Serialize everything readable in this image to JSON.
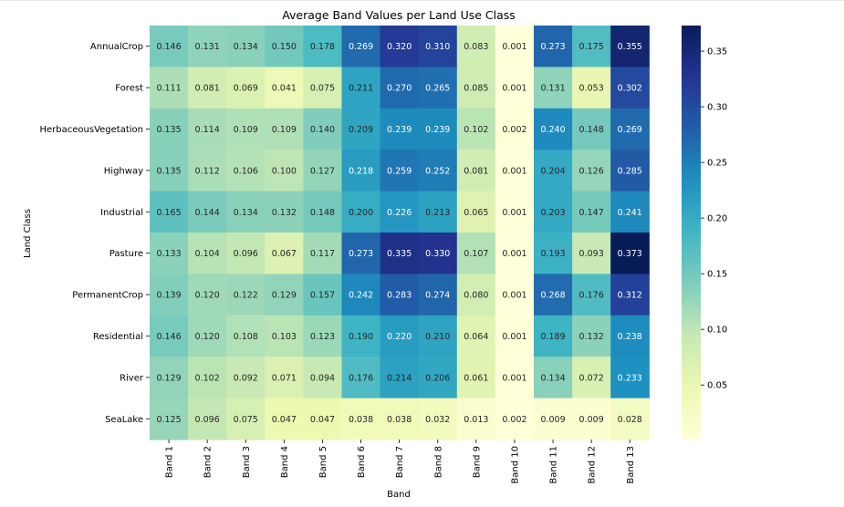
{
  "chart_data": {
    "type": "heatmap",
    "title": "Average Band Values per Land Use Class",
    "xlabel": "Band",
    "ylabel": "Land Class",
    "x": [
      "Band 1",
      "Band 2",
      "Band 3",
      "Band 4",
      "Band 5",
      "Band 6",
      "Band 7",
      "Band 8",
      "Band 9",
      "Band 10",
      "Band 11",
      "Band 12",
      "Band 13"
    ],
    "y": [
      "AnnualCrop",
      "Forest",
      "HerbaceousVegetation",
      "Highway",
      "Industrial",
      "Pasture",
      "PermanentCrop",
      "Residential",
      "River",
      "SeaLake"
    ],
    "values": [
      [
        0.146,
        0.131,
        0.134,
        0.15,
        0.178,
        0.269,
        0.32,
        0.31,
        0.083,
        0.001,
        0.273,
        0.175,
        0.355
      ],
      [
        0.111,
        0.081,
        0.069,
        0.041,
        0.075,
        0.211,
        0.27,
        0.265,
        0.085,
        0.001,
        0.131,
        0.053,
        0.302
      ],
      [
        0.135,
        0.114,
        0.109,
        0.109,
        0.14,
        0.209,
        0.239,
        0.239,
        0.102,
        0.002,
        0.24,
        0.148,
        0.269
      ],
      [
        0.135,
        0.112,
        0.106,
        0.1,
        0.127,
        0.218,
        0.259,
        0.252,
        0.081,
        0.001,
        0.204,
        0.126,
        0.285
      ],
      [
        0.165,
        0.144,
        0.134,
        0.132,
        0.148,
        0.2,
        0.226,
        0.213,
        0.065,
        0.001,
        0.203,
        0.147,
        0.241
      ],
      [
        0.133,
        0.104,
        0.096,
        0.067,
        0.117,
        0.273,
        0.335,
        0.33,
        0.107,
        0.001,
        0.193,
        0.093,
        0.373
      ],
      [
        0.139,
        0.12,
        0.122,
        0.129,
        0.157,
        0.242,
        0.283,
        0.274,
        0.08,
        0.001,
        0.268,
        0.176,
        0.312
      ],
      [
        0.146,
        0.12,
        0.108,
        0.103,
        0.123,
        0.19,
        0.22,
        0.21,
        0.064,
        0.001,
        0.189,
        0.132,
        0.238
      ],
      [
        0.129,
        0.102,
        0.092,
        0.071,
        0.094,
        0.176,
        0.214,
        0.206,
        0.061,
        0.001,
        0.134,
        0.072,
        0.233
      ],
      [
        0.125,
        0.096,
        0.075,
        0.047,
        0.047,
        0.038,
        0.038,
        0.032,
        0.013,
        0.002,
        0.009,
        0.009,
        0.028
      ]
    ],
    "value_labels": [
      [
        "0.146",
        "0.131",
        "0.134",
        "0.150",
        "0.178",
        "0.269",
        "0.320",
        "0.310",
        "0.083",
        "0.001",
        "0.273",
        "0.175",
        "0.355"
      ],
      [
        "0.111",
        "0.081",
        "0.069",
        "0.041",
        "0.075",
        "0.211",
        "0.270",
        "0.265",
        "0.085",
        "0.001",
        "0.131",
        "0.053",
        "0.302"
      ],
      [
        "0.135",
        "0.114",
        "0.109",
        "0.109",
        "0.140",
        "0.209",
        "0.239",
        "0.239",
        "0.102",
        "0.002",
        "0.240",
        "0.148",
        "0.269"
      ],
      [
        "0.135",
        "0.112",
        "0.106",
        "0.100",
        "0.127",
        "0.218",
        "0.259",
        "0.252",
        "0.081",
        "0.001",
        "0.204",
        "0.126",
        "0.285"
      ],
      [
        "0.165",
        "0.144",
        "0.134",
        "0.132",
        "0.148",
        "0.200",
        "0.226",
        "0.213",
        "0.065",
        "0.001",
        "0.203",
        "0.147",
        "0.241"
      ],
      [
        "0.133",
        "0.104",
        "0.096",
        "0.067",
        "0.117",
        "0.273",
        "0.335",
        "0.330",
        "0.107",
        "0.001",
        "0.193",
        "0.093",
        "0.373"
      ],
      [
        "0.139",
        "0.120",
        "0.122",
        "0.129",
        "0.157",
        "0.242",
        "0.283",
        "0.274",
        "0.080",
        "0.001",
        "0.268",
        "0.176",
        "0.312"
      ],
      [
        "0.146",
        "0.120",
        "0.108",
        "0.103",
        "0.123",
        "0.190",
        "0.220",
        "0.210",
        "0.064",
        "0.001",
        "0.189",
        "0.132",
        "0.238"
      ],
      [
        "0.129",
        "0.102",
        "0.092",
        "0.071",
        "0.094",
        "0.176",
        "0.214",
        "0.206",
        "0.061",
        "0.001",
        "0.134",
        "0.072",
        "0.233"
      ],
      [
        "0.125",
        "0.096",
        "0.075",
        "0.047",
        "0.047",
        "0.038",
        "0.038",
        "0.032",
        "0.013",
        "0.002",
        "0.009",
        "0.009",
        "0.028"
      ]
    ],
    "colormap": "YlGnBu",
    "color_range": [
      0.001,
      0.373
    ],
    "colorbar_ticks": [
      0.05,
      0.1,
      0.15,
      0.2,
      0.25,
      0.3,
      0.35
    ],
    "colorbar_tick_labels": [
      "0.05",
      "0.10",
      "0.15",
      "0.20",
      "0.25",
      "0.30",
      "0.35"
    ],
    "colorbar_placement": "right",
    "grid": false
  }
}
